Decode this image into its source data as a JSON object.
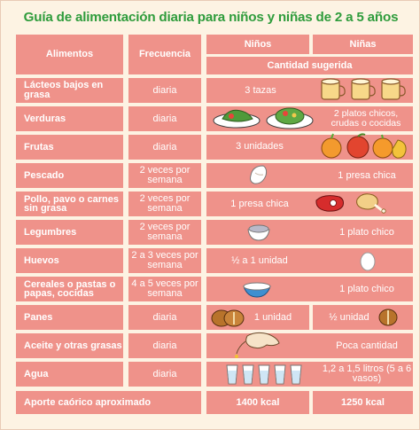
{
  "title": "Guía de alimentación diaria para niños y niñas de 2 a 5 años",
  "headers": {
    "alimentos": "Alimentos",
    "frecuencia": "Frecuencia",
    "ninos": "Niños",
    "ninas": "Niñas",
    "cantidad": "Cantidad sugerida"
  },
  "rows": [
    {
      "food": "Lácteos bajos en grasa",
      "freq": "diaria",
      "ninos": "3 tazas",
      "ninas": ""
    },
    {
      "food": "Verduras",
      "freq": "diaria",
      "ninos": "",
      "ninas": "2 platos chicos, crudas o cocidas"
    },
    {
      "food": "Frutas",
      "freq": "diaria",
      "ninos": "3 unidades",
      "ninas": ""
    },
    {
      "food": "Pescado",
      "freq": "2 veces por semana",
      "ninos": "",
      "ninas": "1 presa chica"
    },
    {
      "food": "Pollo, pavo o carnes sin grasa",
      "freq": "2 veces por semana",
      "ninos": "1 presa chica",
      "ninas": ""
    },
    {
      "food": "Legumbres",
      "freq": "2 veces por semana",
      "ninos": "",
      "ninas": "1 plato chico"
    },
    {
      "food": "Huevos",
      "freq": "2 a 3 veces por semana",
      "ninos": "½ a 1 unidad",
      "ninas": ""
    },
    {
      "food": "Cereales o pastas o papas, cocidas",
      "freq": "4 a 5 veces por semana",
      "ninos": "",
      "ninas": "1 plato chico"
    },
    {
      "food": "Panes",
      "freq": "diaria",
      "ninos": "1 unidad",
      "ninas": "½ unidad"
    },
    {
      "food": "Aceite y otras grasas",
      "freq": "diaria",
      "ninos": "",
      "ninas": "Poca cantidad"
    },
    {
      "food": "Agua",
      "freq": "diaria",
      "ninos": "",
      "ninas": "1,2 a 1,5 litros (5 a 6 vasos)"
    }
  ],
  "total": {
    "label": "Aporte caórico aproximado",
    "ninos": "1400 kcal",
    "ninas": "1250 kcal"
  },
  "colors": {
    "title": "#2f9c3c",
    "cell": "#ef928a",
    "background": "#fdf3e3"
  },
  "icons": [
    "milk-cup-icon",
    "salad-plate-icon",
    "fruit-icon",
    "fish-fillet-icon",
    "meat-steak-icon",
    "chicken-leg-icon",
    "beans-bowl-icon",
    "egg-icon",
    "rice-bowl-icon",
    "bread-roll-icon",
    "oil-pour-hand-icon",
    "water-glass-icon"
  ]
}
